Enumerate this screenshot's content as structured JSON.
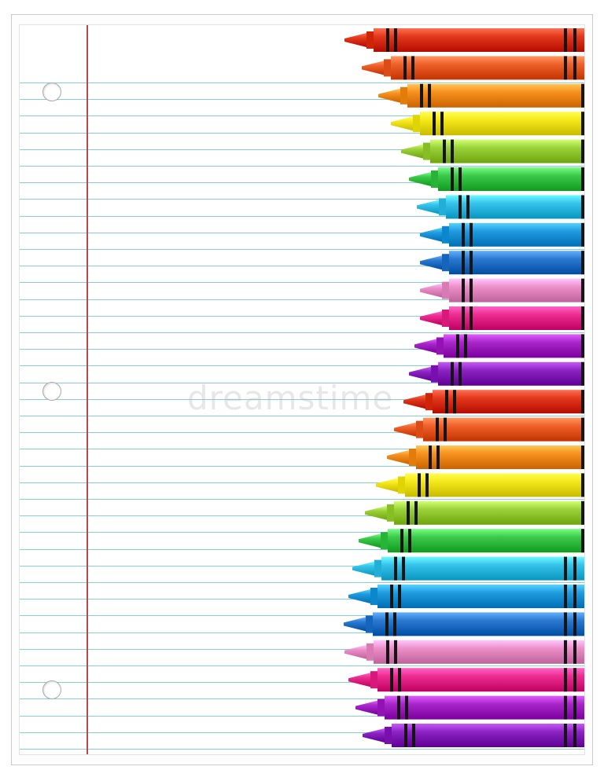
{
  "watermark": "dreamstime",
  "colors": {
    "rule": "#86cfd6",
    "margin": "#b34a4a"
  },
  "crayons": [
    {
      "color": "red",
      "body": "#e2381b"
    },
    {
      "color": "red-orange",
      "body": "#f0602a"
    },
    {
      "color": "orange",
      "body": "#f7901e"
    },
    {
      "color": "yellow",
      "body": "#f4e81a"
    },
    {
      "color": "yellow-green",
      "body": "#9bd23a"
    },
    {
      "color": "green",
      "body": "#3cc84a"
    },
    {
      "color": "sky-blue",
      "body": "#35c3ec"
    },
    {
      "color": "blue",
      "body": "#1f9be0"
    },
    {
      "color": "royal-blue",
      "body": "#2a79d0"
    },
    {
      "color": "pink",
      "body": "#ec8fc8"
    },
    {
      "color": "magenta",
      "body": "#ec2c8f"
    },
    {
      "color": "violet",
      "body": "#a826c9"
    },
    {
      "color": "purple",
      "body": "#8c23c2"
    },
    {
      "color": "red",
      "body": "#e2381b"
    },
    {
      "color": "red-orange",
      "body": "#f0602a"
    },
    {
      "color": "orange",
      "body": "#f7901e"
    },
    {
      "color": "yellow",
      "body": "#f4e81a"
    },
    {
      "color": "yellow-green",
      "body": "#9bd23a"
    },
    {
      "color": "green",
      "body": "#3cc84a"
    },
    {
      "color": "sky-blue",
      "body": "#35c3ec"
    },
    {
      "color": "blue",
      "body": "#1f9be0"
    },
    {
      "color": "royal-blue",
      "body": "#2a79d0"
    },
    {
      "color": "pink",
      "body": "#ec8fc8"
    },
    {
      "color": "magenta",
      "body": "#ec2c8f"
    },
    {
      "color": "violet",
      "body": "#a826c9"
    },
    {
      "color": "purple",
      "body": "#8c23c2"
    }
  ]
}
